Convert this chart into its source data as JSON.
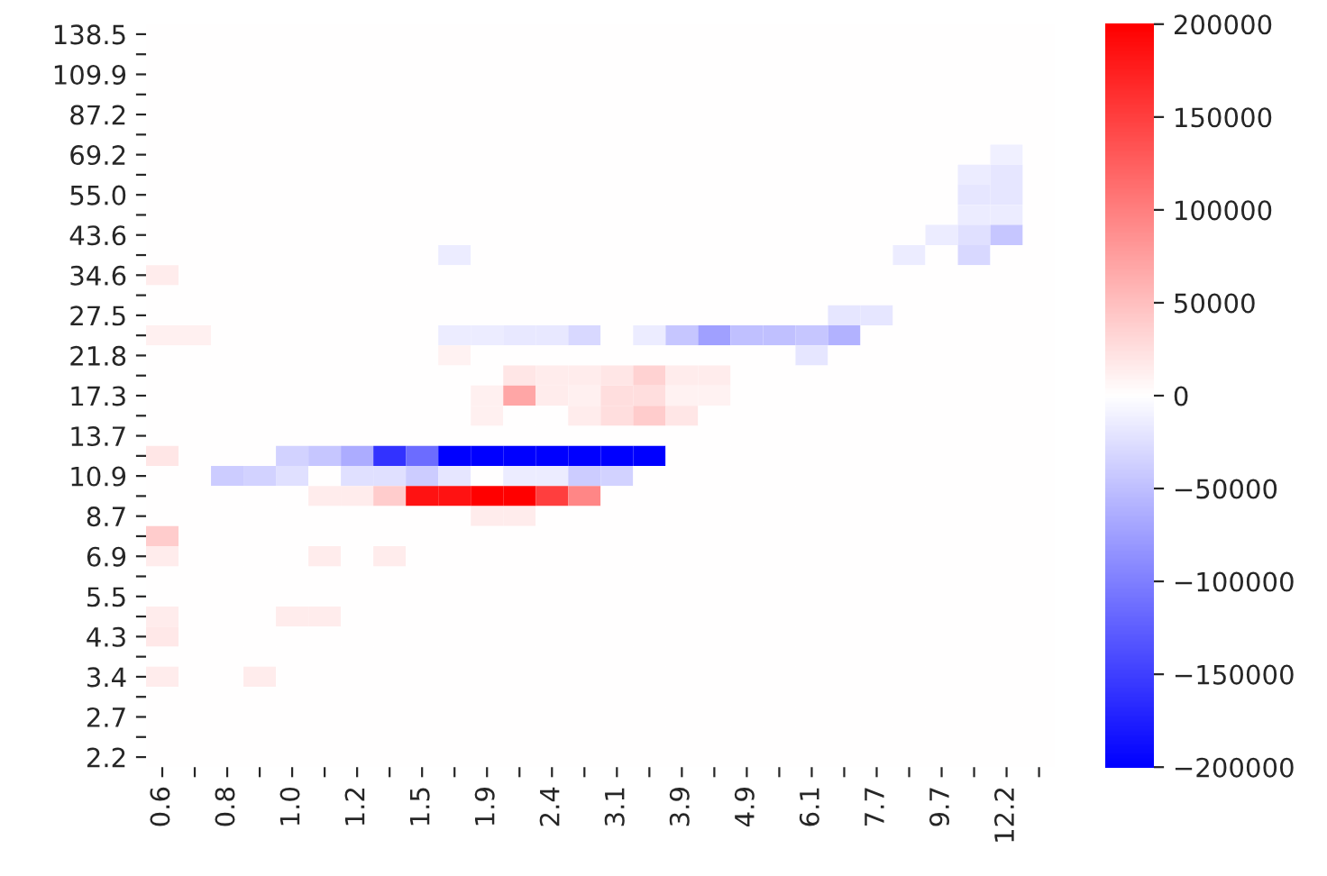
{
  "chart_data": {
    "type": "heatmap",
    "categories": [
      "0.6",
      null,
      "0.8",
      null,
      "1.0",
      null,
      "1.2",
      null,
      "1.5",
      null,
      "1.9",
      null,
      "2.4",
      null,
      "3.1",
      null,
      "3.9",
      null,
      "4.9",
      null,
      "6.1",
      null,
      "7.7",
      null,
      "9.7",
      null,
      "12.2",
      null
    ],
    "y_categories": [
      "138.5",
      null,
      "109.9",
      null,
      "87.2",
      null,
      "69.2",
      null,
      "55.0",
      null,
      "43.6",
      null,
      "34.6",
      null,
      "27.5",
      null,
      "21.8",
      null,
      "17.3",
      null,
      "13.7",
      null,
      "10.9",
      null,
      "8.7",
      null,
      "6.9",
      null,
      "5.5",
      null,
      "4.3",
      null,
      "3.4",
      null,
      "2.7",
      null,
      "2.2"
    ],
    "clim": [
      -200000,
      200000
    ],
    "cticks": [
      -200000,
      -150000,
      -100000,
      -50000,
      0,
      50000,
      100000,
      150000,
      200000
    ],
    "cells": [
      [
        0,
        0,
        0,
        0,
        0,
        0,
        0,
        0,
        0,
        0,
        0,
        0,
        0,
        0,
        0,
        0,
        0,
        0,
        0,
        0,
        0,
        0,
        0,
        0,
        0,
        0,
        0,
        0
      ],
      [
        0,
        0,
        0,
        0,
        0,
        0,
        0,
        0,
        0,
        0,
        0,
        0,
        0,
        0,
        0,
        0,
        0,
        0,
        0,
        0,
        0,
        0,
        0,
        0,
        0,
        0,
        0,
        0
      ],
      [
        0,
        0,
        0,
        0,
        0,
        0,
        0,
        0,
        0,
        0,
        0,
        0,
        0,
        0,
        0,
        0,
        0,
        0,
        0,
        0,
        0,
        0,
        0,
        0,
        0,
        0,
        0,
        0
      ],
      [
        0,
        0,
        0,
        0,
        0,
        0,
        0,
        0,
        0,
        0,
        0,
        0,
        0,
        0,
        0,
        0,
        0,
        0,
        0,
        0,
        0,
        0,
        0,
        0,
        0,
        0,
        0,
        0
      ],
      [
        0,
        0,
        0,
        0,
        0,
        0,
        0,
        0,
        0,
        0,
        0,
        0,
        0,
        0,
        0,
        0,
        0,
        0,
        0,
        0,
        0,
        0,
        0,
        0,
        0,
        0,
        0,
        0
      ],
      [
        0,
        0,
        0,
        0,
        0,
        0,
        0,
        0,
        0,
        0,
        0,
        0,
        0,
        0,
        0,
        0,
        0,
        0,
        0,
        0,
        0,
        0,
        0,
        0,
        0,
        0,
        0,
        0
      ],
      [
        0,
        0,
        0,
        0,
        0,
        0,
        0,
        0,
        0,
        0,
        0,
        0,
        0,
        0,
        0,
        0,
        0,
        0,
        0,
        0,
        0,
        0,
        0,
        0,
        0,
        0,
        -12000,
        0
      ],
      [
        0,
        0,
        0,
        0,
        0,
        0,
        0,
        0,
        0,
        0,
        0,
        0,
        0,
        0,
        0,
        0,
        0,
        0,
        0,
        0,
        0,
        0,
        0,
        0,
        0,
        -15000,
        -20000,
        0
      ],
      [
        0,
        0,
        0,
        0,
        0,
        0,
        0,
        0,
        0,
        0,
        0,
        0,
        0,
        0,
        0,
        0,
        0,
        0,
        0,
        0,
        0,
        0,
        0,
        0,
        0,
        -20000,
        -20000,
        0
      ],
      [
        0,
        0,
        0,
        0,
        0,
        0,
        0,
        0,
        0,
        0,
        0,
        0,
        0,
        0,
        0,
        0,
        0,
        0,
        0,
        0,
        0,
        0,
        0,
        0,
        0,
        -15000,
        -15000,
        0
      ],
      [
        0,
        0,
        0,
        0,
        0,
        0,
        0,
        0,
        0,
        0,
        0,
        0,
        0,
        0,
        0,
        0,
        0,
        0,
        0,
        0,
        0,
        0,
        0,
        0,
        -15000,
        -25000,
        -45000,
        0
      ],
      [
        0,
        0,
        0,
        0,
        0,
        0,
        0,
        0,
        0,
        -15000,
        0,
        0,
        0,
        0,
        0,
        0,
        0,
        0,
        0,
        0,
        0,
        0,
        0,
        -15000,
        0,
        -30000,
        0,
        0
      ],
      [
        15000,
        0,
        0,
        0,
        0,
        0,
        0,
        0,
        0,
        0,
        0,
        0,
        0,
        0,
        0,
        0,
        0,
        0,
        0,
        0,
        0,
        0,
        0,
        0,
        0,
        0,
        0,
        0
      ],
      [
        0,
        0,
        0,
        0,
        0,
        0,
        0,
        0,
        0,
        0,
        0,
        0,
        0,
        0,
        0,
        0,
        0,
        0,
        0,
        0,
        0,
        0,
        0,
        0,
        0,
        0,
        0,
        0
      ],
      [
        0,
        0,
        0,
        0,
        0,
        0,
        0,
        0,
        0,
        0,
        0,
        0,
        0,
        0,
        0,
        0,
        0,
        0,
        0,
        0,
        0,
        -20000,
        -20000,
        0,
        0,
        0,
        0,
        0
      ],
      [
        12000,
        12000,
        0,
        0,
        0,
        0,
        0,
        0,
        0,
        -15000,
        -15000,
        -18000,
        -18000,
        -30000,
        0,
        -15000,
        -45000,
        -75000,
        -50000,
        -50000,
        -45000,
        -60000,
        0,
        0,
        0,
        0,
        0,
        0
      ],
      [
        0,
        0,
        0,
        0,
        0,
        0,
        0,
        0,
        0,
        10000,
        0,
        0,
        0,
        0,
        0,
        0,
        0,
        0,
        0,
        0,
        -20000,
        0,
        0,
        0,
        0,
        0,
        0,
        0
      ],
      [
        0,
        0,
        0,
        0,
        0,
        0,
        0,
        0,
        0,
        0,
        0,
        20000,
        15000,
        15000,
        20000,
        35000,
        15000,
        15000,
        0,
        0,
        0,
        0,
        0,
        0,
        0,
        0,
        0,
        0
      ],
      [
        0,
        0,
        0,
        0,
        0,
        0,
        0,
        0,
        0,
        0,
        12000,
        70000,
        15000,
        12000,
        25000,
        25000,
        10000,
        10000,
        0,
        0,
        0,
        0,
        0,
        0,
        0,
        0,
        0,
        0
      ],
      [
        0,
        0,
        0,
        0,
        0,
        0,
        0,
        0,
        0,
        0,
        12000,
        0,
        0,
        15000,
        25000,
        40000,
        20000,
        0,
        0,
        0,
        0,
        0,
        0,
        0,
        0,
        0,
        0,
        0
      ],
      [
        0,
        0,
        0,
        0,
        0,
        0,
        0,
        0,
        0,
        0,
        0,
        0,
        0,
        0,
        0,
        0,
        0,
        0,
        0,
        0,
        0,
        0,
        0,
        0,
        0,
        0,
        0,
        0
      ],
      [
        20000,
        0,
        0,
        0,
        -35000,
        -45000,
        -65000,
        -160000,
        -115000,
        -200000,
        -200000,
        -200000,
        -200000,
        -200000,
        -200000,
        -200000,
        0,
        0,
        0,
        0,
        0,
        0,
        0,
        0,
        0,
        0,
        0,
        0
      ],
      [
        0,
        0,
        -40000,
        -35000,
        -25000,
        0,
        -25000,
        -25000,
        -40000,
        -20000,
        0,
        -15000,
        -15000,
        -40000,
        -35000,
        0,
        0,
        0,
        0,
        0,
        0,
        0,
        0,
        0,
        0,
        0,
        0,
        0
      ],
      [
        0,
        0,
        0,
        0,
        0,
        15000,
        15000,
        40000,
        185000,
        185000,
        200000,
        200000,
        150000,
        95000,
        0,
        0,
        0,
        0,
        0,
        0,
        0,
        0,
        0,
        0,
        0,
        0,
        0,
        0
      ],
      [
        0,
        0,
        0,
        0,
        0,
        0,
        0,
        0,
        0,
        0,
        15000,
        15000,
        0,
        0,
        0,
        0,
        0,
        0,
        0,
        0,
        0,
        0,
        0,
        0,
        0,
        0,
        0,
        0
      ],
      [
        40000,
        0,
        0,
        0,
        0,
        0,
        0,
        0,
        0,
        0,
        0,
        0,
        0,
        0,
        0,
        0,
        0,
        0,
        0,
        0,
        0,
        0,
        0,
        0,
        0,
        0,
        0,
        0
      ],
      [
        15000,
        0,
        0,
        0,
        0,
        15000,
        0,
        15000,
        0,
        0,
        0,
        0,
        0,
        0,
        0,
        0,
        0,
        0,
        0,
        0,
        0,
        0,
        0,
        0,
        0,
        0,
        0,
        0
      ],
      [
        0,
        0,
        0,
        0,
        0,
        0,
        0,
        0,
        0,
        0,
        0,
        0,
        0,
        0,
        0,
        0,
        0,
        0,
        0,
        0,
        0,
        0,
        0,
        0,
        0,
        0,
        0,
        0
      ],
      [
        0,
        0,
        0,
        0,
        0,
        0,
        0,
        0,
        0,
        0,
        0,
        0,
        0,
        0,
        0,
        0,
        0,
        0,
        0,
        0,
        0,
        0,
        0,
        0,
        0,
        0,
        0,
        0
      ],
      [
        15000,
        0,
        0,
        0,
        15000,
        15000,
        0,
        0,
        0,
        0,
        0,
        0,
        0,
        0,
        0,
        0,
        0,
        0,
        0,
        0,
        0,
        0,
        0,
        0,
        0,
        0,
        0,
        0
      ],
      [
        18000,
        0,
        0,
        0,
        0,
        0,
        0,
        0,
        0,
        0,
        0,
        0,
        0,
        0,
        0,
        0,
        0,
        0,
        0,
        0,
        0,
        0,
        0,
        0,
        0,
        0,
        0,
        0
      ],
      [
        0,
        0,
        0,
        0,
        0,
        0,
        0,
        0,
        0,
        0,
        0,
        0,
        0,
        0,
        0,
        0,
        0,
        0,
        0,
        0,
        0,
        0,
        0,
        0,
        0,
        0,
        0,
        0
      ],
      [
        15000,
        0,
        0,
        15000,
        0,
        0,
        0,
        0,
        0,
        0,
        0,
        0,
        0,
        0,
        0,
        0,
        0,
        0,
        0,
        0,
        0,
        0,
        0,
        0,
        0,
        0,
        0,
        0
      ],
      [
        0,
        0,
        0,
        0,
        0,
        0,
        0,
        0,
        0,
        0,
        0,
        0,
        0,
        0,
        0,
        0,
        0,
        0,
        0,
        0,
        0,
        0,
        0,
        0,
        0,
        0,
        0,
        0
      ],
      [
        0,
        0,
        0,
        0,
        0,
        0,
        0,
        0,
        0,
        0,
        0,
        0,
        0,
        0,
        0,
        0,
        0,
        0,
        0,
        0,
        0,
        0,
        0,
        0,
        0,
        0,
        0,
        0
      ],
      [
        0,
        0,
        0,
        0,
        0,
        0,
        0,
        0,
        0,
        0,
        0,
        0,
        0,
        0,
        0,
        0,
        0,
        0,
        0,
        0,
        0,
        0,
        0,
        0,
        0,
        0,
        0,
        0
      ],
      [
        0,
        0,
        0,
        0,
        0,
        0,
        0,
        0,
        0,
        0,
        0,
        0,
        0,
        0,
        0,
        0,
        0,
        0,
        0,
        0,
        0,
        0,
        0,
        0,
        0,
        0,
        0,
        0
      ]
    ]
  }
}
